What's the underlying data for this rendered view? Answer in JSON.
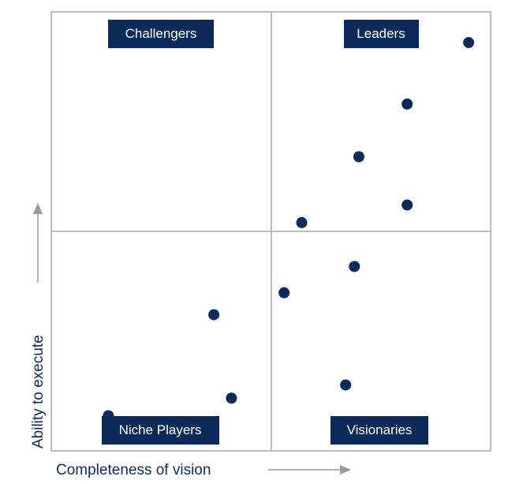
{
  "chart_data": {
    "type": "scatter",
    "title": "",
    "xlabel": "Completeness of vision",
    "ylabel": "Ability to execute",
    "xlim": [
      0,
      100
    ],
    "ylim": [
      0,
      100
    ],
    "grid": false,
    "quadrants": {
      "top_left": "Challengers",
      "top_right": "Leaders",
      "bottom_left": "Niche Players",
      "bottom_right": "Visionaries"
    },
    "points": [
      {
        "x": 95,
        "y": 93
      },
      {
        "x": 81,
        "y": 79
      },
      {
        "x": 70,
        "y": 67
      },
      {
        "x": 81,
        "y": 56
      },
      {
        "x": 57,
        "y": 52
      },
      {
        "x": 69,
        "y": 42
      },
      {
        "x": 53,
        "y": 36
      },
      {
        "x": 37,
        "y": 31
      },
      {
        "x": 67,
        "y": 15
      },
      {
        "x": 41,
        "y": 12
      },
      {
        "x": 13,
        "y": 8
      }
    ]
  },
  "colors": {
    "label_background": "#0b2a5a",
    "label_text": "#ffffff",
    "point": "#0b2a5a",
    "frame": "#bdbdbd",
    "arrow": "#9a9a9a",
    "axis_text": "#0b2a5a"
  }
}
